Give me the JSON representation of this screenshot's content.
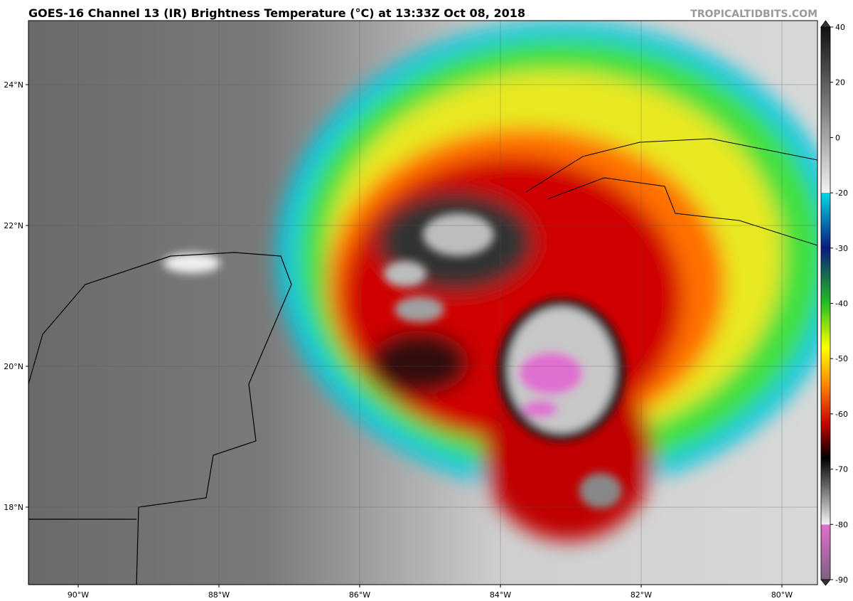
{
  "header": {
    "title": "GOES-16 Channel 13 (IR) Brightness Temperature (°C) at 13:33Z Oct 08, 2018",
    "credit": "TROPICALTIDBITS.COM"
  },
  "map": {
    "lon_labels": [
      "90°W",
      "88°W",
      "86°W",
      "84°W",
      "82°W",
      "80°W"
    ],
    "lat_labels": [
      "24°N",
      "22°N",
      "20°N",
      "18°N"
    ]
  },
  "colorbar": {
    "ticks": [
      40,
      20,
      0,
      -20,
      -30,
      -40,
      -50,
      -60,
      -70,
      -80,
      -90
    ]
  }
}
